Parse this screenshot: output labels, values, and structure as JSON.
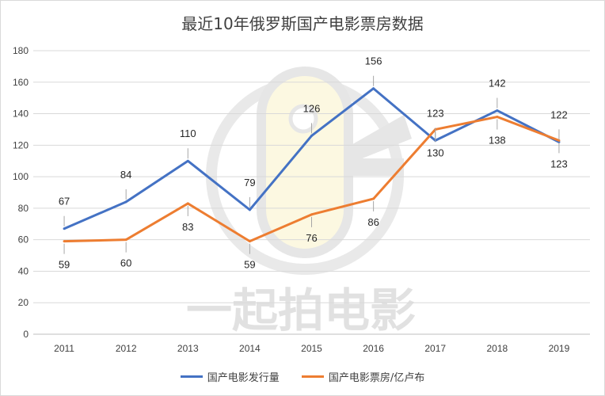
{
  "chart_data": {
    "type": "line",
    "title": "最近10年俄罗斯国产电影票房数据",
    "categories": [
      "2011",
      "2012",
      "2013",
      "2014",
      "2015",
      "2016",
      "2017",
      "2018",
      "2019"
    ],
    "ylim": [
      0,
      180
    ],
    "yticks": [
      0,
      20,
      40,
      60,
      80,
      100,
      120,
      140,
      160,
      180
    ],
    "grid": true,
    "legend_position": "bottom",
    "series": [
      {
        "name": "国产电影发行量",
        "color": "#4472c4",
        "values": [
          67,
          84,
          110,
          79,
          126,
          156,
          123,
          142,
          122
        ]
      },
      {
        "name": "国产电影票房/亿卢布",
        "color": "#ed7d31",
        "values": [
          59,
          60,
          83,
          59,
          76,
          86,
          130,
          138,
          123
        ]
      }
    ]
  },
  "watermark": {
    "text": "一起拍电影"
  }
}
